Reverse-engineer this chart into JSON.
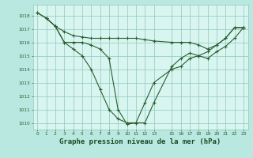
{
  "background_color": "#b8e8e0",
  "plot_bg_color": "#d8f5f0",
  "grid_color": "#8ec8bc",
  "line_color": "#2a5e30",
  "title": "Graphe pression niveau de la mer (hPa)",
  "title_fontsize": 6.5,
  "title_color": "#1a4a20",
  "ylim": [
    1009.5,
    1018.8
  ],
  "yticks": [
    1010,
    1011,
    1012,
    1013,
    1014,
    1015,
    1016,
    1017,
    1018
  ],
  "xtick_vals": [
    0,
    1,
    2,
    3,
    4,
    5,
    6,
    7,
    8,
    9,
    10,
    11,
    12,
    13,
    15,
    16,
    17,
    18,
    19,
    20,
    21,
    22,
    23
  ],
  "xtick_labels": [
    "0",
    "1",
    "2",
    "3",
    "4",
    "5",
    "6",
    "7",
    "8",
    "9",
    "10",
    "11",
    "12",
    "13",
    "15",
    "16",
    "17",
    "18",
    "19",
    "20",
    "21",
    "22",
    "23"
  ],
  "xlim": [
    -0.5,
    23.5
  ],
  "s1_x": [
    0,
    1,
    2,
    3,
    4,
    5,
    6,
    7,
    8,
    9,
    10,
    11,
    12,
    13,
    15,
    16,
    17,
    18,
    19,
    20,
    21,
    22,
    23
  ],
  "s1_y": [
    1018.2,
    1017.8,
    1017.2,
    1016.0,
    1015.5,
    1015.0,
    1014.0,
    1012.5,
    1011.0,
    1010.3,
    1010.0,
    1010.0,
    1011.5,
    1013.0,
    1014.0,
    1014.2,
    1014.8,
    1015.0,
    1015.3,
    1015.8,
    1016.3,
    1017.1,
    1017.1
  ],
  "s2_x": [
    0,
    1,
    2,
    3,
    4,
    5,
    6,
    7,
    8,
    9,
    10,
    11,
    12,
    13,
    15,
    16,
    17,
    18,
    19,
    20,
    21,
    22,
    23
  ],
  "s2_y": [
    1018.2,
    1017.8,
    1017.2,
    1016.0,
    1016.0,
    1016.0,
    1015.8,
    1015.5,
    1014.8,
    1011.0,
    1009.9,
    1010.0,
    1010.0,
    1011.5,
    1014.2,
    1014.8,
    1015.2,
    1015.0,
    1014.8,
    1015.3,
    1015.7,
    1016.3,
    1017.1
  ],
  "s3_x": [
    1,
    2,
    3,
    4,
    5,
    6,
    7,
    8,
    9,
    10,
    11,
    12,
    13,
    15,
    16,
    17,
    18,
    19,
    20,
    21,
    22,
    23
  ],
  "s3_y": [
    1017.8,
    1017.2,
    1016.8,
    1016.5,
    1016.4,
    1016.3,
    1016.3,
    1016.3,
    1016.3,
    1016.3,
    1016.3,
    1016.2,
    1016.1,
    1016.0,
    1016.0,
    1016.0,
    1015.8,
    1015.5,
    1015.8,
    1016.3,
    1017.1,
    1017.1
  ]
}
